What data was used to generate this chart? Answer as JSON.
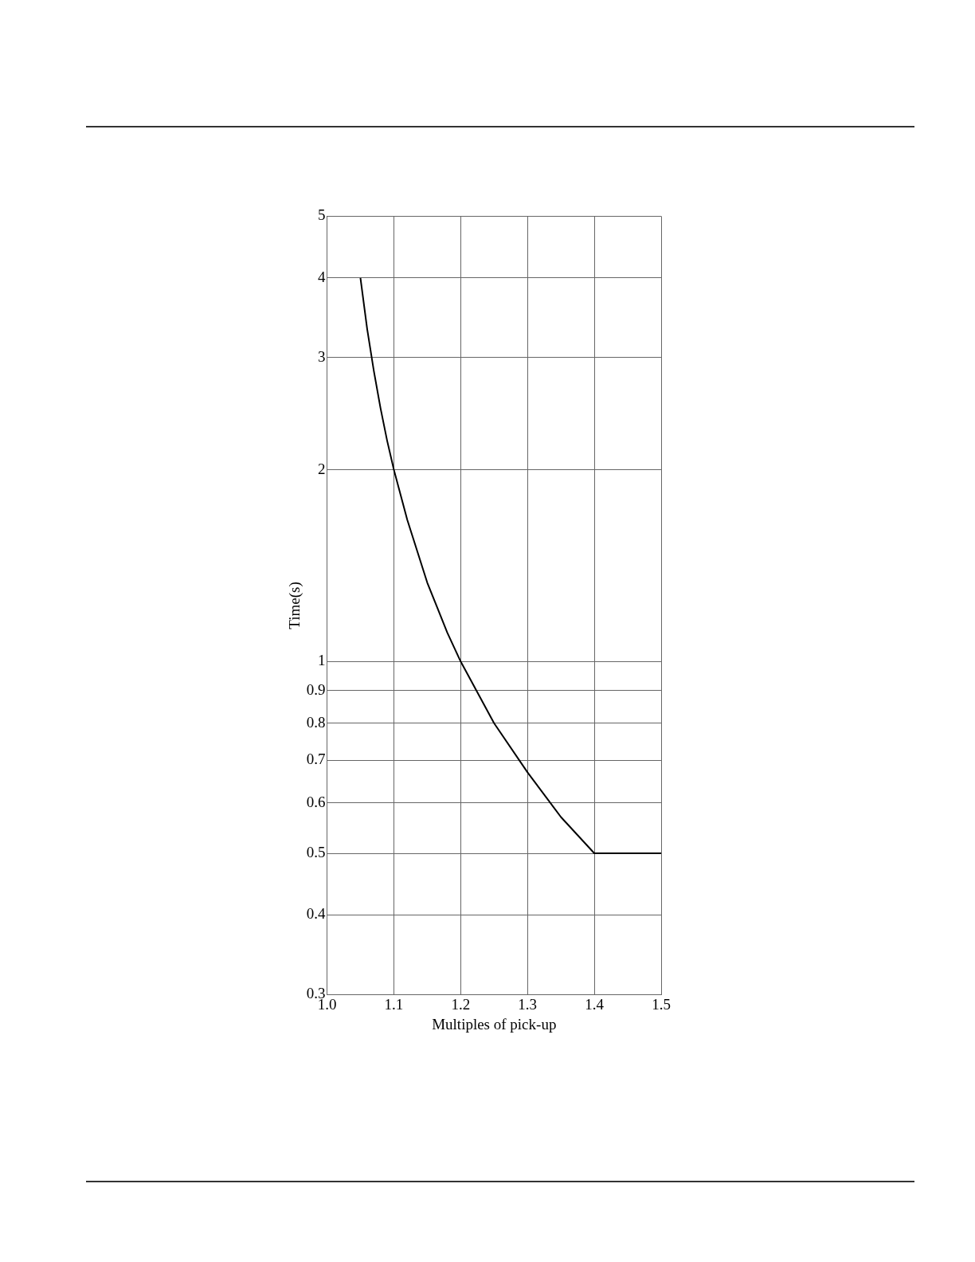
{
  "chart_data": {
    "type": "line",
    "xlabel": "Multiples of pick-up",
    "ylabel": "Time(s)",
    "x": [
      1.05,
      1.06,
      1.07,
      1.08,
      1.09,
      1.1,
      1.12,
      1.15,
      1.18,
      1.2,
      1.25,
      1.3,
      1.35,
      1.4,
      1.5
    ],
    "values": [
      4,
      3.33,
      2.86,
      2.5,
      2.22,
      2,
      1.67,
      1.33,
      1.11,
      1,
      0.8,
      0.67,
      0.57,
      0.5,
      0.5
    ],
    "color": "#000000",
    "line_style": "solid",
    "xlim": [
      1.0,
      1.5
    ],
    "xticks": [
      {
        "value": 1.0,
        "label": "1.0"
      },
      1.1,
      1.2,
      1.3,
      1.4,
      1.5
    ],
    "ylim": [
      0.3,
      5
    ],
    "yticks": [
      0.3,
      0.4,
      0.5,
      0.6,
      0.7,
      0.8,
      0.9,
      1,
      2,
      3,
      4,
      5
    ],
    "log": "y",
    "grid": true
  }
}
